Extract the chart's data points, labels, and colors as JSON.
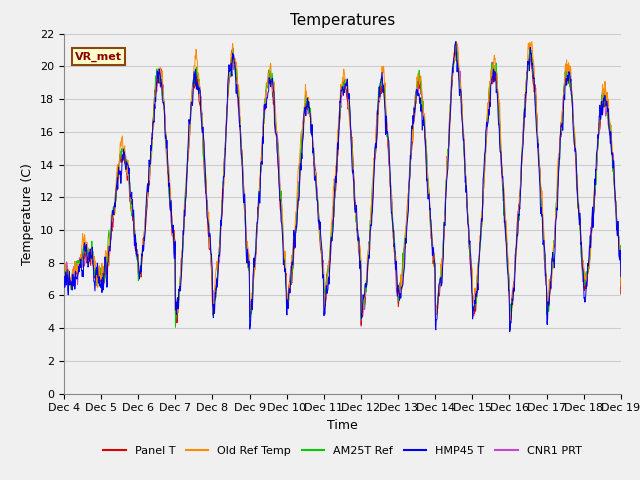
{
  "title": "Temperatures",
  "xlabel": "Time",
  "ylabel": "Temperature (C)",
  "ylim": [
    0,
    22
  ],
  "xlim": [
    0,
    360
  ],
  "fig_bg_color": "#f0f0f0",
  "plot_bg_color": "#f0f0f0",
  "grid_color": "#cccccc",
  "annotation_text": "VR_met",
  "annotation_bg": "#ffffcc",
  "annotation_border": "#8b4513",
  "x_tick_labels": [
    "Dec 4",
    "Dec 5",
    "Dec 6",
    "Dec 7",
    "Dec 8",
    "Dec 9",
    "Dec 10",
    "Dec 11",
    "Dec 12",
    "Dec 13",
    "Dec 14",
    "Dec 15",
    "Dec 16",
    "Dec 17",
    "Dec 18",
    "Dec 19"
  ],
  "x_tick_positions": [
    0,
    24,
    48,
    72,
    96,
    120,
    144,
    168,
    192,
    216,
    240,
    264,
    288,
    312,
    336,
    360
  ],
  "legend_entries": [
    "Panel T",
    "Old Ref Temp",
    "AM25T Ref",
    "HMP45 T",
    "CNR1 PRT"
  ],
  "line_colors": [
    "#dd0000",
    "#ff8c00",
    "#00cc00",
    "#0000ee",
    "#cc44cc"
  ],
  "title_fontsize": 11,
  "axis_fontsize": 9,
  "tick_fontsize": 8
}
